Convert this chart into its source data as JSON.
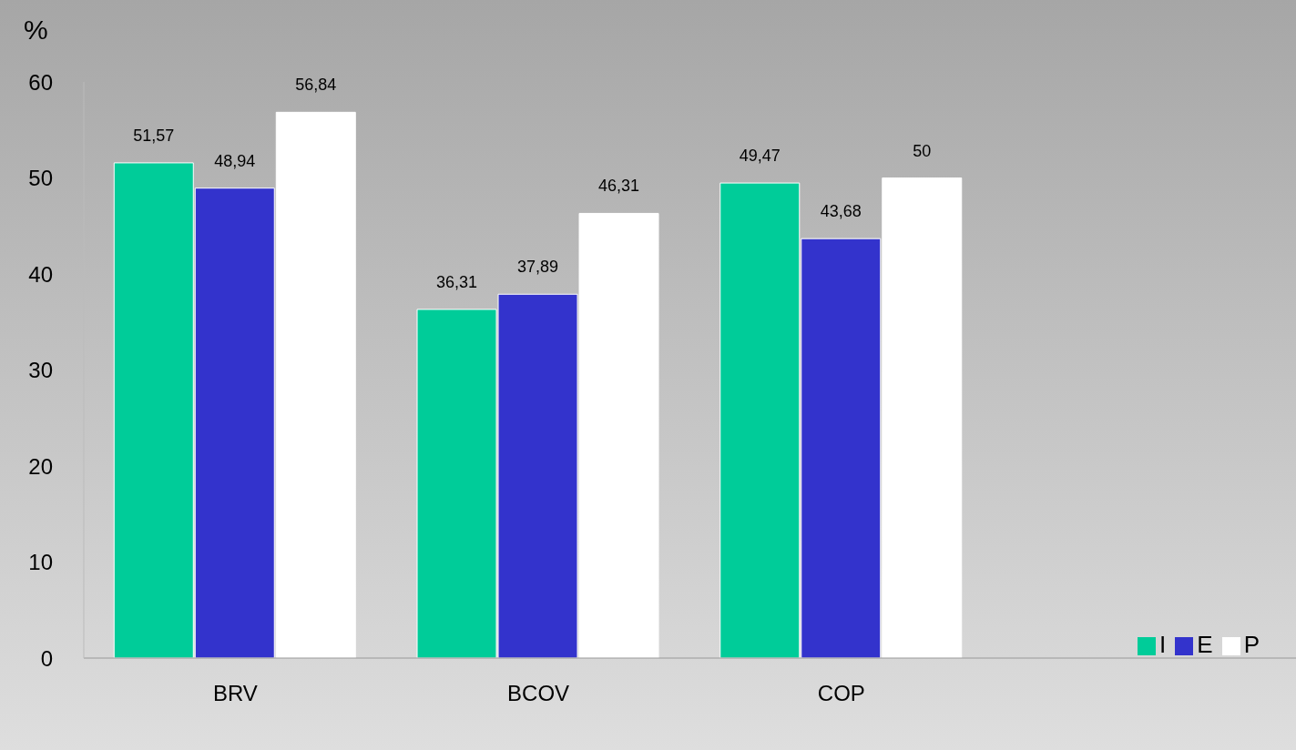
{
  "chart_data": {
    "type": "bar",
    "ylabel": "%",
    "categories": [
      "BRV",
      "BCOV",
      "COP",
      null
    ],
    "series": [
      {
        "name": "I",
        "color": "#00cc99",
        "values": [
          51.57,
          36.31,
          49.47,
          null
        ],
        "value_labels": [
          "51,57",
          "36,31",
          "49,47",
          null
        ]
      },
      {
        "name": "E",
        "color": "#3333cc",
        "values": [
          48.94,
          37.89,
          43.68,
          null
        ],
        "value_labels": [
          "48,94",
          "37,89",
          "43,68",
          null
        ]
      },
      {
        "name": "P",
        "color": "#ffffff",
        "values": [
          56.84,
          46.31,
          50,
          null
        ],
        "value_labels": [
          "56,84",
          "46,31",
          "50",
          null
        ]
      }
    ],
    "ylim": [
      0,
      60
    ],
    "yticks": [
      0,
      10,
      20,
      30,
      40,
      50,
      60
    ],
    "grid": false,
    "legend": "bottom right"
  }
}
